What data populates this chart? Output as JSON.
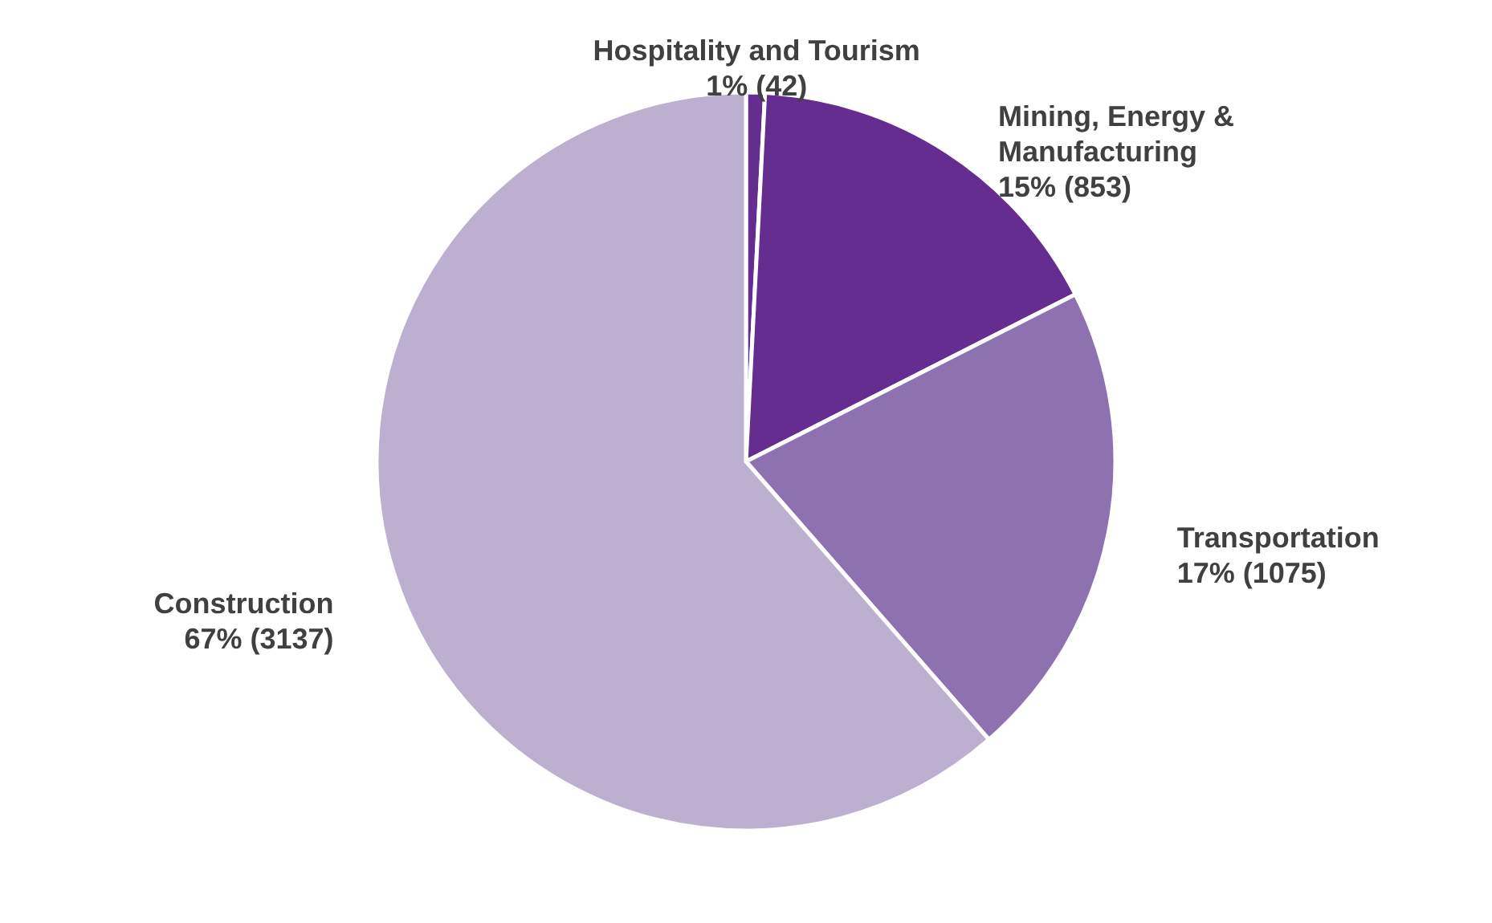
{
  "chart_data": {
    "type": "pie",
    "categories": [
      "Hospitality and Tourism",
      "Mining, Energy & Manufacturing",
      "Transportation",
      "Construction"
    ],
    "values": [
      42,
      853,
      1075,
      3137
    ],
    "value_labels": [
      "1%  (42)",
      "15% (853)",
      "17% (1075)",
      "67%  (3137)"
    ],
    "colors": [
      "#662d91",
      "#662d91",
      "#8e72b0",
      "#bcafcf"
    ]
  }
}
